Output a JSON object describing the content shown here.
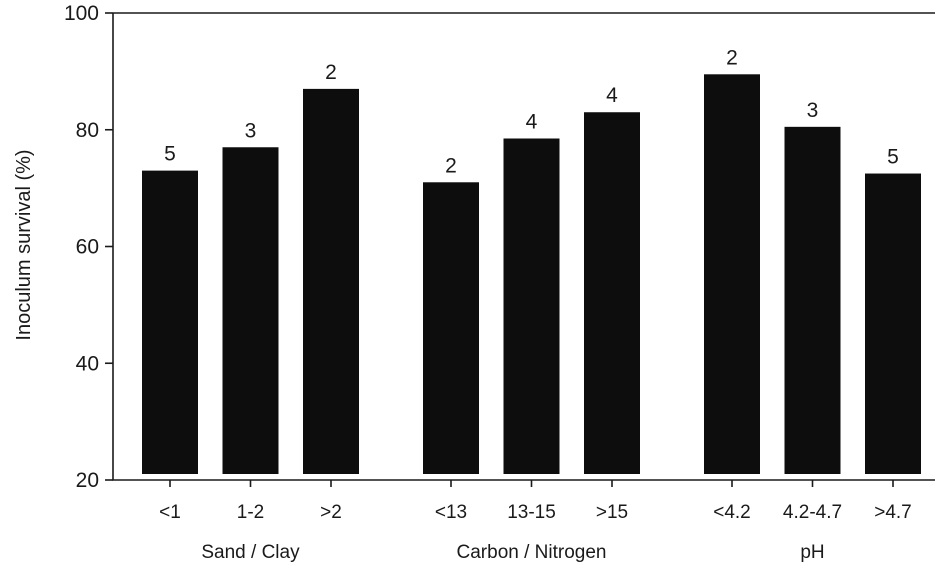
{
  "chart_data": {
    "type": "bar",
    "ylabel": "Inoculum survival (%)",
    "ylim": [
      20,
      100
    ],
    "yticks": [
      20,
      40,
      60,
      80,
      100
    ],
    "grid": false,
    "groups": [
      {
        "name": "Sand / Clay",
        "categories": [
          "<1",
          "1-2",
          ">2"
        ],
        "values": [
          73,
          77,
          87
        ],
        "n": [
          "5",
          "3",
          "2"
        ]
      },
      {
        "name": "Carbon / Nitrogen",
        "categories": [
          "<13",
          "13-15",
          ">15"
        ],
        "values": [
          71,
          78.5,
          83
        ],
        "n": [
          "2",
          "4",
          "4"
        ]
      },
      {
        "name": "pH",
        "categories": [
          "<4.2",
          "4.2-4.7",
          ">4.7"
        ],
        "values": [
          89.5,
          80.5,
          72.5
        ],
        "n": [
          "2",
          "3",
          "5"
        ]
      }
    ],
    "colors": {
      "bar": "#0d0d0d",
      "axis": "#1a1a1a"
    }
  }
}
